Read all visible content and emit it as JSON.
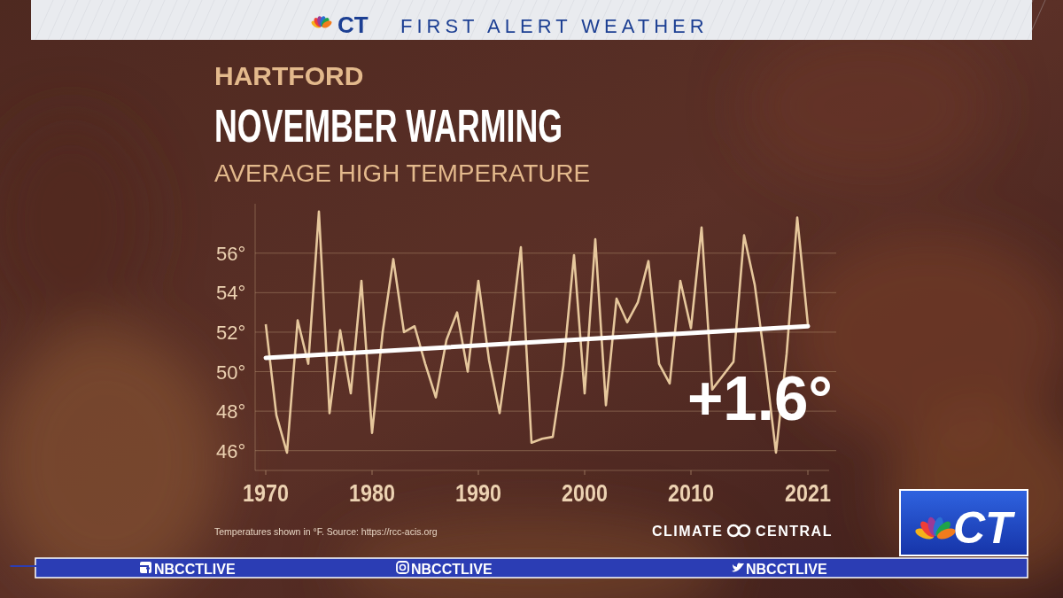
{
  "header": {
    "logo": "CT",
    "title": "FIRST ALERT WEATHER"
  },
  "chart_data": {
    "type": "line",
    "kicker": "HARTFORD",
    "title": "NOVEMBER WARMING",
    "subtitle": "AVERAGE HIGH TEMPERATURE",
    "x": [
      1970,
      1971,
      1972,
      1973,
      1974,
      1975,
      1976,
      1977,
      1978,
      1979,
      1980,
      1981,
      1982,
      1983,
      1984,
      1985,
      1986,
      1987,
      1988,
      1989,
      1990,
      1991,
      1992,
      1993,
      1994,
      1995,
      1996,
      1997,
      1998,
      1999,
      2000,
      2001,
      2002,
      2003,
      2004,
      2005,
      2006,
      2007,
      2008,
      2009,
      2010,
      2011,
      2012,
      2013,
      2014,
      2015,
      2016,
      2017,
      2018,
      2019,
      2020,
      2021
    ],
    "values": [
      52.4,
      47.8,
      45.9,
      52.6,
      50.4,
      58.1,
      47.9,
      52.1,
      48.9,
      54.6,
      46.9,
      52.0,
      55.7,
      52.0,
      52.3,
      50.4,
      48.7,
      51.6,
      53.0,
      50.0,
      54.6,
      50.6,
      47.9,
      51.8,
      56.3,
      46.4,
      46.6,
      46.7,
      50.3,
      55.9,
      48.9,
      56.7,
      48.3,
      53.7,
      52.5,
      53.5,
      55.6,
      50.4,
      49.4,
      54.6,
      52.2,
      57.3,
      49.1,
      49.8,
      50.5,
      56.9,
      54.4,
      50.4,
      45.9,
      50.9,
      57.8,
      52.4
    ],
    "color": "#e6c79c",
    "trend": {
      "x": [
        1970,
        2021
      ],
      "values": [
        50.7,
        52.3
      ]
    },
    "annotation": "+1.6°",
    "xlim": [
      1969,
      2023
    ],
    "xticks": [
      1970,
      1980,
      1990,
      2000,
      2010,
      2021
    ],
    "ylim": [
      45,
      58.5
    ],
    "yticks": [
      {
        "value": 46,
        "label": "46°"
      },
      {
        "value": 48,
        "label": "48°"
      },
      {
        "value": 50,
        "label": "50°"
      },
      {
        "value": 52,
        "label": "52°"
      },
      {
        "value": 54,
        "label": "54°"
      },
      {
        "value": 56,
        "label": "56°"
      }
    ],
    "grid": true,
    "source": "Temperatures shown in °F. Source: https://rcc-acis.org",
    "credit": [
      "CLIMATE",
      "CENTRAL"
    ]
  },
  "branding": {
    "social": [
      "NBCCTLIVE",
      "NBCCTLIVE",
      "NBCCTLIVE"
    ],
    "logo": "CT"
  }
}
